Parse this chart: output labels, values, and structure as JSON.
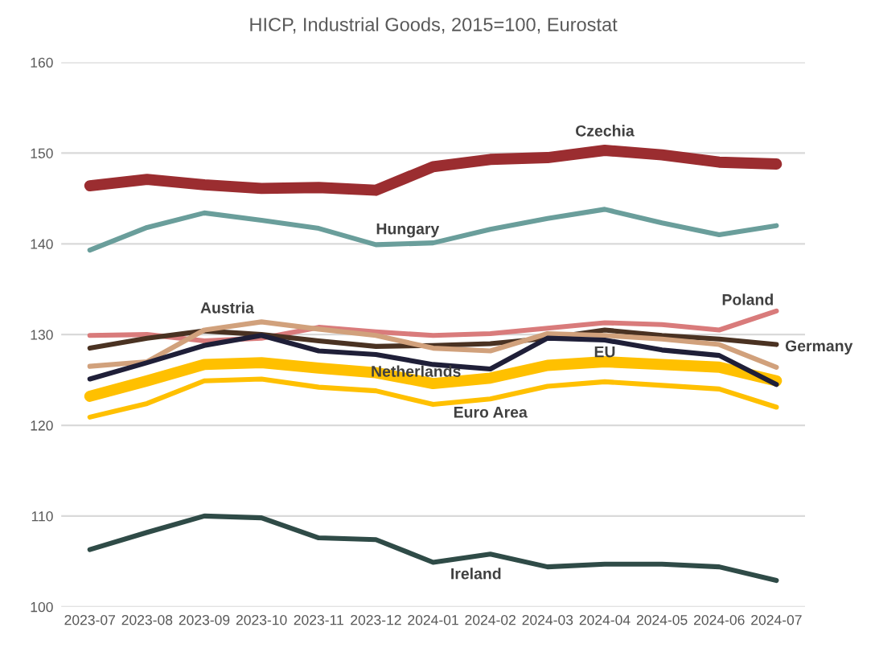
{
  "chart_data": {
    "type": "line",
    "title": "HICP, Industrial Goods, 2015=100, Eurostat",
    "categories": [
      "2023-07",
      "2023-08",
      "2023-09",
      "2023-10",
      "2023-11",
      "2023-12",
      "2024-01",
      "2024-02",
      "2024-03",
      "2024-04",
      "2024-05",
      "2024-06",
      "2024-07"
    ],
    "ylim": [
      100,
      160
    ],
    "yticks": [
      100,
      110,
      120,
      130,
      140,
      150,
      160
    ],
    "grid": "y",
    "legend": false,
    "marker": "none",
    "line_style": "solid",
    "series": [
      {
        "name": "Ireland",
        "color": "#2f4b47",
        "values": [
          106.3,
          108.2,
          110.0,
          109.8,
          107.6,
          107.4,
          104.9,
          105.8,
          104.4,
          104.7,
          104.7,
          104.4,
          102.9
        ]
      },
      {
        "name": "Hungary",
        "color": "#6a9e9b",
        "values": [
          139.3,
          141.8,
          143.4,
          142.6,
          141.7,
          139.9,
          140.1,
          141.6,
          142.8,
          143.8,
          142.3,
          141.0,
          142.0
        ]
      },
      {
        "name": "Czechia",
        "color": "#9b2d30",
        "values": [
          146.4,
          147.1,
          146.5,
          146.1,
          146.2,
          145.9,
          148.5,
          149.3,
          149.5,
          150.3,
          149.8,
          149.0,
          148.8
        ]
      },
      {
        "name": "Poland",
        "color": "#d97b7b",
        "values": [
          129.9,
          130.0,
          129.3,
          129.6,
          130.8,
          130.3,
          129.9,
          130.1,
          130.7,
          131.3,
          131.1,
          130.5,
          132.6
        ]
      },
      {
        "name": "Germany",
        "color": "#4a3222",
        "values": [
          128.5,
          129.6,
          130.4,
          130.0,
          129.3,
          128.7,
          128.8,
          129.0,
          129.6,
          130.5,
          129.9,
          129.5,
          128.9
        ]
      },
      {
        "name": "Austria",
        "color": "#d1a17c",
        "values": [
          126.5,
          127.0,
          130.5,
          131.4,
          130.6,
          129.9,
          128.5,
          128.2,
          130.1,
          129.9,
          129.5,
          128.9,
          126.4
        ]
      },
      {
        "name": "Netherlands",
        "color": "#1f1f38",
        "values": [
          125.1,
          126.9,
          128.8,
          129.9,
          128.2,
          127.8,
          126.7,
          126.2,
          129.6,
          129.4,
          128.3,
          127.7,
          124.5
        ]
      },
      {
        "name": "EU",
        "color": "#ffc000",
        "values": [
          123.2,
          124.9,
          126.7,
          126.9,
          126.3,
          125.8,
          124.6,
          125.2,
          126.6,
          127.0,
          126.7,
          126.4,
          124.9
        ]
      },
      {
        "name": "Euro Area",
        "color": "#ffc000",
        "values": [
          120.9,
          122.4,
          124.9,
          125.1,
          124.2,
          123.8,
          122.3,
          122.9,
          124.3,
          124.8,
          124.4,
          124.0,
          122.0
        ]
      }
    ]
  }
}
